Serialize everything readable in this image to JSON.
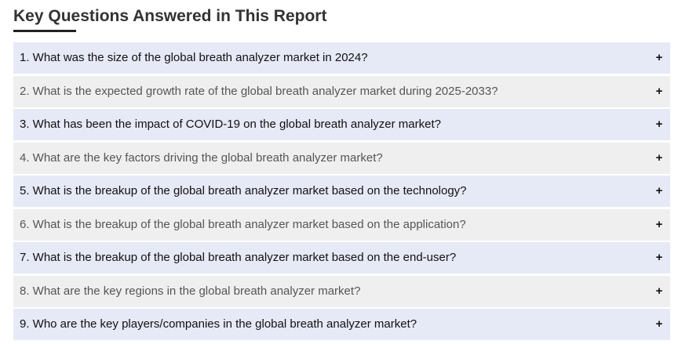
{
  "section": {
    "title": "Key Questions Answered in This Report"
  },
  "faq": {
    "toggle_icon": "plus-icon",
    "toggle_glyph": "+",
    "items": [
      {
        "question": "1. What was the size of the global breath analyzer market in 2024?"
      },
      {
        "question": "2. What is the expected growth rate of the global breath analyzer market during 2025-2033?"
      },
      {
        "question": "3. What has been the impact of COVID-19 on the global breath analyzer market?"
      },
      {
        "question": "4. What are the key factors driving the global breath analyzer market?"
      },
      {
        "question": "5. What is the breakup of the global breath analyzer market based on the technology?"
      },
      {
        "question": "6. What is the breakup of the global breath analyzer market based on the application?"
      },
      {
        "question": "7. What is the breakup of the global breath analyzer market based on the end-user?"
      },
      {
        "question": "8. What are the key regions in the global breath analyzer market?"
      },
      {
        "question": "9. Who are the key players/companies in the global breath analyzer market?"
      }
    ]
  },
  "colors": {
    "row_odd_bg": "#e6e9f6",
    "row_even_bg": "#efefef",
    "title_text": "#333333"
  }
}
